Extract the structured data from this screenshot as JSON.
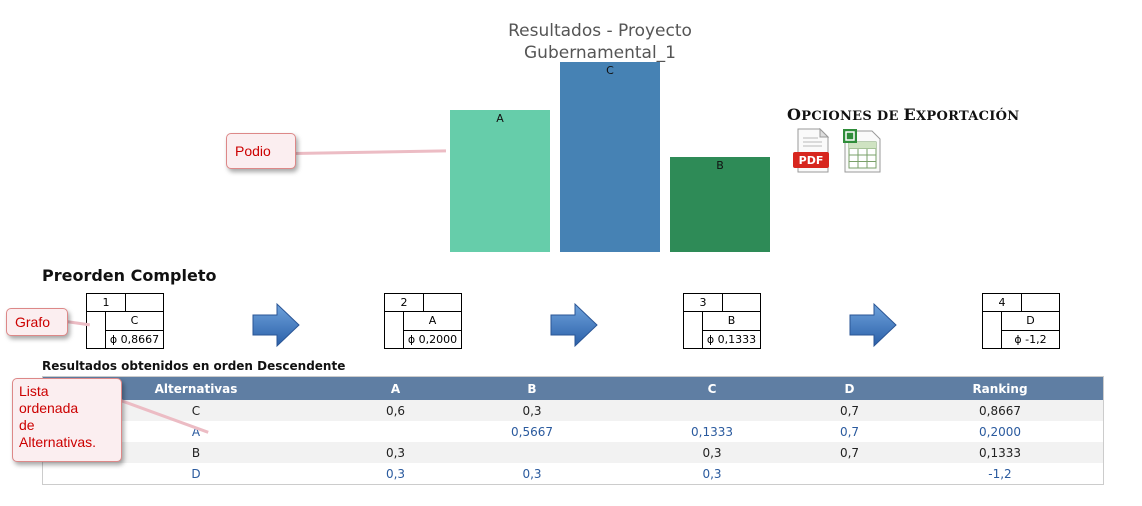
{
  "podium": {
    "title_line1": "Resultados - Proyecto",
    "title_line2": "Gubernamental_1",
    "bars": [
      {
        "label": "A",
        "color": "#66cdaa"
      },
      {
        "label": "C",
        "color": "#4682b4"
      },
      {
        "label": "B",
        "color": "#2e8b57"
      }
    ]
  },
  "callouts": {
    "podio": "Podio",
    "grafo": "Grafo",
    "lista": [
      "Lista",
      "ordenada",
      "de",
      "Alternativas."
    ]
  },
  "export": {
    "title_first": "O",
    "title_rest": "PCIONES DE ",
    "title_first2": "E",
    "title_rest2": "XPORTACIÓN",
    "pdf_label": "PDF",
    "pdf_icon": "pdf-file-icon",
    "excel_icon": "spreadsheet-file-icon"
  },
  "preorden": {
    "heading": "Preorden Completo",
    "nodes": [
      {
        "rank": "1",
        "alt": "C",
        "phi": "ϕ 0,8667"
      },
      {
        "rank": "2",
        "alt": "A",
        "phi": "ϕ 0,2000"
      },
      {
        "rank": "3",
        "alt": "B",
        "phi": "ϕ 0,1333"
      },
      {
        "rank": "4",
        "alt": "D",
        "phi": "ϕ -1,2"
      }
    ],
    "arrow_icon": "right-arrow-icon"
  },
  "results": {
    "caption": "Resultados obtenidos en orden Descendente",
    "columns": [
      "Alternativas",
      "A",
      "B",
      "C",
      "D",
      "Ranking"
    ],
    "rows": [
      [
        "C",
        "0,6",
        "0,3",
        "",
        "0,7",
        "0,8667"
      ],
      [
        "A",
        "",
        "0,5667",
        "0,1333",
        "0,7",
        "0,2000"
      ],
      [
        "B",
        "0,3",
        "",
        "0,3",
        "0,7",
        "0,1333"
      ],
      [
        "D",
        "0,3",
        "0,3",
        "0,3",
        "",
        "-1,2"
      ]
    ]
  }
}
